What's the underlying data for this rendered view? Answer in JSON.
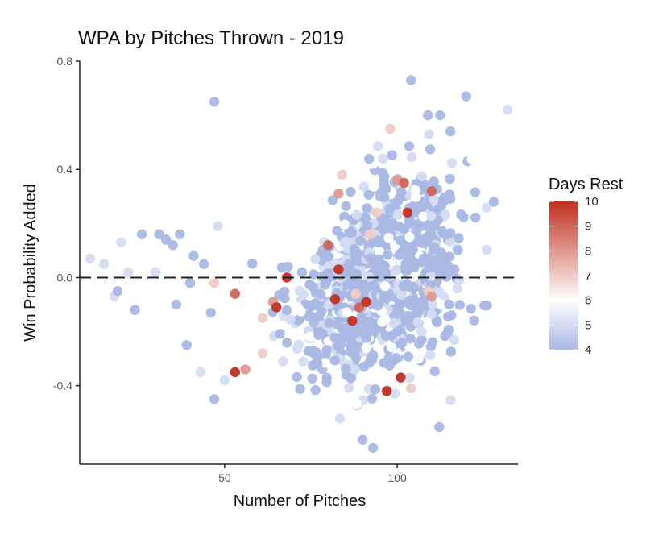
{
  "chart_data": {
    "type": "scatter",
    "title": "WPA by Pitches Thrown - 2019",
    "xlabel": "Number of Pitches",
    "ylabel": "Win Probability Added",
    "xlim": [
      8,
      135
    ],
    "ylim": [
      -0.69,
      0.8
    ],
    "x_ticks": [
      50,
      100
    ],
    "x_tick_labels": [
      "50",
      "100"
    ],
    "y_ticks": [
      0.8,
      0.4,
      0.0,
      -0.4
    ],
    "y_tick_labels": [
      "0.8",
      "0.4",
      "0.0",
      "-0.4"
    ],
    "reference_line": {
      "y": 0.0,
      "style": "dashed"
    },
    "grid": false,
    "legend": {
      "title": "Days Rest",
      "placement": "right",
      "min": 4,
      "max": 10,
      "ticks": [
        4,
        5,
        6,
        7,
        8,
        9,
        10
      ],
      "tick_labels": [
        "4",
        "5",
        "6",
        "7",
        "8",
        "9",
        "10"
      ],
      "colors": {
        "low": "#a9b8e4",
        "mid": "#ffffff",
        "high": "#c03020",
        "midpoint": 6
      }
    },
    "points_highlighted": [
      {
        "x": 47,
        "y": -0.02,
        "rest": 7
      },
      {
        "x": 53,
        "y": -0.06,
        "rest": 9
      },
      {
        "x": 53,
        "y": -0.35,
        "rest": 10
      },
      {
        "x": 56,
        "y": -0.34,
        "rest": 8
      },
      {
        "x": 61,
        "y": -0.15,
        "rest": 7
      },
      {
        "x": 61,
        "y": -0.28,
        "rest": 7
      },
      {
        "x": 64,
        "y": -0.09,
        "rest": 8
      },
      {
        "x": 65,
        "y": -0.11,
        "rest": 10
      },
      {
        "x": 68,
        "y": 0.0,
        "rest": 10
      },
      {
        "x": 80,
        "y": 0.12,
        "rest": 9
      },
      {
        "x": 82,
        "y": -0.08,
        "rest": 10
      },
      {
        "x": 83,
        "y": 0.03,
        "rest": 10
      },
      {
        "x": 83,
        "y": 0.31,
        "rest": 8
      },
      {
        "x": 84,
        "y": 0.38,
        "rest": 7
      },
      {
        "x": 87,
        "y": -0.16,
        "rest": 10
      },
      {
        "x": 88,
        "y": -0.06,
        "rest": 7
      },
      {
        "x": 89,
        "y": -0.11,
        "rest": 9
      },
      {
        "x": 91,
        "y": -0.09,
        "rest": 10
      },
      {
        "x": 92,
        "y": 0.16,
        "rest": 7
      },
      {
        "x": 94,
        "y": 0.24,
        "rest": 7
      },
      {
        "x": 97,
        "y": -0.42,
        "rest": 10
      },
      {
        "x": 98,
        "y": 0.55,
        "rest": 7
      },
      {
        "x": 100,
        "y": 0.36,
        "rest": 8
      },
      {
        "x": 101,
        "y": -0.37,
        "rest": 10
      },
      {
        "x": 102,
        "y": 0.35,
        "rest": 9
      },
      {
        "x": 103,
        "y": 0.24,
        "rest": 10
      },
      {
        "x": 104,
        "y": -0.41,
        "rest": 7
      },
      {
        "x": 109,
        "y": -0.05,
        "rest": 7
      },
      {
        "x": 110,
        "y": 0.32,
        "rest": 9
      },
      {
        "x": 110,
        "y": -0.07,
        "rest": 8
      }
    ],
    "points_edge": [
      {
        "x": 11,
        "y": 0.07,
        "rest": 5
      },
      {
        "x": 15,
        "y": 0.05,
        "rest": 5
      },
      {
        "x": 18,
        "y": -0.07,
        "rest": 5
      },
      {
        "x": 19,
        "y": -0.05,
        "rest": 4
      },
      {
        "x": 20,
        "y": 0.13,
        "rest": 5
      },
      {
        "x": 22,
        "y": 0.02,
        "rest": 5
      },
      {
        "x": 24,
        "y": -0.12,
        "rest": 4
      },
      {
        "x": 26,
        "y": 0.16,
        "rest": 4
      },
      {
        "x": 30,
        "y": 0.02,
        "rest": 5
      },
      {
        "x": 31,
        "y": 0.16,
        "rest": 4
      },
      {
        "x": 33,
        "y": 0.14,
        "rest": 4
      },
      {
        "x": 35,
        "y": 0.12,
        "rest": 4
      },
      {
        "x": 36,
        "y": -0.1,
        "rest": 4
      },
      {
        "x": 37,
        "y": 0.16,
        "rest": 4
      },
      {
        "x": 39,
        "y": -0.25,
        "rest": 4
      },
      {
        "x": 40,
        "y": -0.02,
        "rest": 4
      },
      {
        "x": 41,
        "y": 0.08,
        "rest": 4
      },
      {
        "x": 43,
        "y": -0.35,
        "rest": 5
      },
      {
        "x": 44,
        "y": 0.05,
        "rest": 4
      },
      {
        "x": 46,
        "y": -0.13,
        "rest": 4
      },
      {
        "x": 47,
        "y": 0.65,
        "rest": 4
      },
      {
        "x": 47,
        "y": -0.45,
        "rest": 4
      },
      {
        "x": 48,
        "y": 0.19,
        "rest": 5
      },
      {
        "x": 50,
        "y": -0.38,
        "rest": 5
      },
      {
        "x": 128,
        "y": 0.28,
        "rest": 4
      },
      {
        "x": 132,
        "y": 0.62,
        "rest": 5
      },
      {
        "x": 120,
        "y": 0.67,
        "rest": 4
      },
      {
        "x": 104,
        "y": 0.73,
        "rest": 4
      },
      {
        "x": 90,
        "y": -0.6,
        "rest": 4
      },
      {
        "x": 93,
        "y": -0.63,
        "rest": 4
      },
      {
        "x": 115,
        "y": -0.1,
        "rest": 4
      },
      {
        "x": 118,
        "y": -0.01,
        "rest": 5
      }
    ],
    "bulk_cluster": {
      "point_count": 1150,
      "x_range": [
        58,
        126
      ],
      "center_x": 95,
      "center_wpa": 0.0,
      "approx_y_range": [
        -0.6,
        0.6
      ],
      "rest_range": [
        4,
        6
      ]
    }
  }
}
